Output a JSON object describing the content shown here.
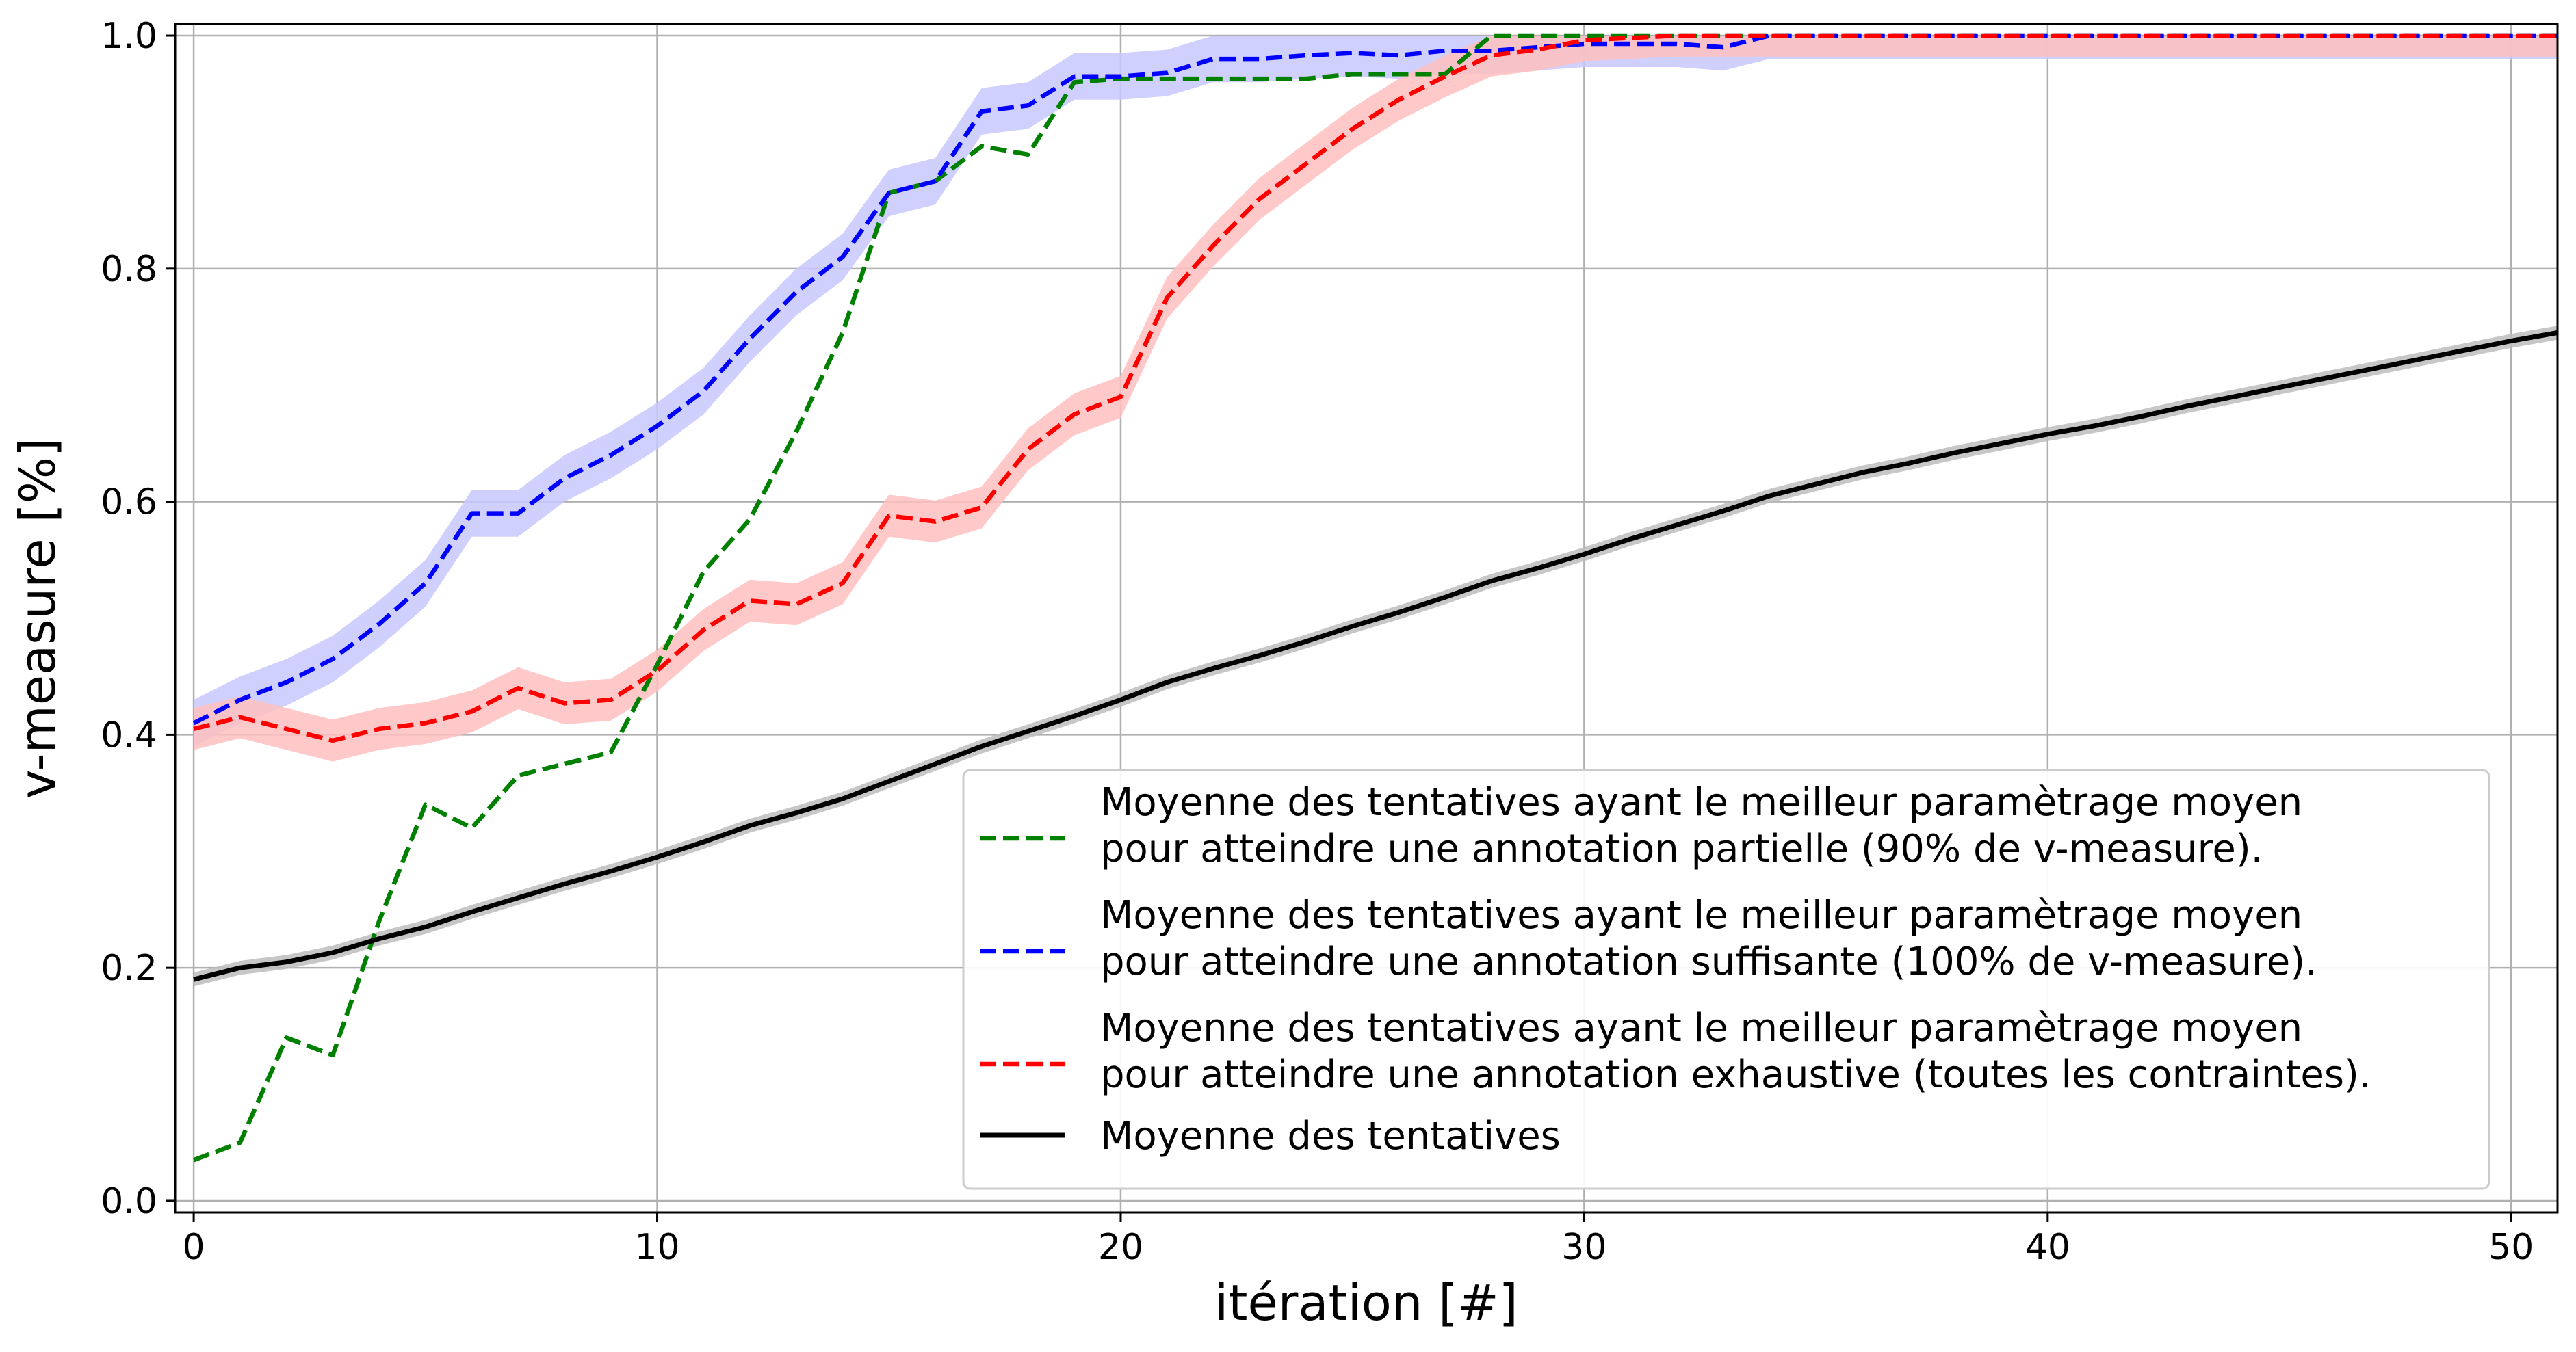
{
  "chart_data": {
    "type": "line",
    "xlabel": "itération [#]",
    "ylabel": "v-measure [%]",
    "xlim": [
      -0.4,
      51
    ],
    "ylim": [
      -0.01,
      1.01
    ],
    "x_ticks": [
      0,
      10,
      20,
      30,
      40,
      50
    ],
    "x_tick_labels": [
      "0",
      "10",
      "20",
      "30",
      "40",
      "50"
    ],
    "y_ticks": [
      0.0,
      0.2,
      0.4,
      0.6,
      0.8,
      1.0
    ],
    "y_tick_labels": [
      "0.0",
      "0.2",
      "0.4",
      "0.6",
      "0.8",
      "1.0"
    ],
    "grid": true,
    "legend_position": "bottom-right",
    "series": [
      {
        "name": "Moyenne des tentatives ayant le meilleur paramètrage moyen pour atteindre une annotation partielle (90% de v-measure).",
        "legend_lines": [
          "Moyenne des tentatives ayant le meilleur paramètrage moyen",
          "pour atteindre une annotation partielle (90% de v-measure)."
        ],
        "color": "#008000",
        "style": "dashed",
        "band": 0,
        "values": [
          0.035,
          0.05,
          0.14,
          0.125,
          0.24,
          0.34,
          0.32,
          0.365,
          0.375,
          0.385,
          0.46,
          0.54,
          0.585,
          0.66,
          0.745,
          0.865,
          0.875,
          0.905,
          0.898,
          0.96,
          0.963,
          0.963,
          0.963,
          0.963,
          0.963,
          0.967,
          0.967,
          0.967,
          1.0,
          1.0,
          1.0,
          1.0,
          1.0,
          1.0,
          1.0,
          1.0,
          1.0,
          1.0,
          1.0,
          1.0,
          1.0,
          1.0,
          1.0,
          1.0,
          1.0,
          1.0,
          1.0,
          1.0,
          1.0,
          1.0,
          1.0,
          1.0
        ]
      },
      {
        "name": "Moyenne des tentatives ayant le meilleur paramètrage moyen pour atteindre une annotation suffisante (100% de v-measure).",
        "legend_lines": [
          "Moyenne des tentatives ayant le meilleur paramètrage moyen",
          "pour atteindre une annotation suffisante (100% de v-measure)."
        ],
        "color": "#0000ff",
        "style": "dashed",
        "band": 0.02,
        "band_color": "#c8c8ff",
        "values": [
          0.41,
          0.43,
          0.445,
          0.465,
          0.495,
          0.53,
          0.59,
          0.59,
          0.62,
          0.64,
          0.665,
          0.695,
          0.74,
          0.78,
          0.81,
          0.865,
          0.875,
          0.935,
          0.94,
          0.965,
          0.965,
          0.968,
          0.98,
          0.98,
          0.983,
          0.985,
          0.983,
          0.987,
          0.987,
          0.99,
          0.993,
          0.993,
          0.993,
          0.99,
          1.0,
          1.0,
          1.0,
          1.0,
          1.0,
          1.0,
          1.0,
          1.0,
          1.0,
          1.0,
          1.0,
          1.0,
          1.0,
          1.0,
          1.0,
          1.0,
          1.0,
          1.0
        ]
      },
      {
        "name": "Moyenne des tentatives ayant le meilleur paramètrage moyen pour atteindre une annotation exhaustive (toutes les contraintes).",
        "legend_lines": [
          "Moyenne des tentatives ayant le meilleur paramètrage moyen",
          "pour atteindre une annotation exhaustive (toutes les contraintes)."
        ],
        "color": "#ff0000",
        "style": "dashed",
        "band": 0.018,
        "band_color": "#ffc0c0",
        "values": [
          0.405,
          0.415,
          0.405,
          0.395,
          0.405,
          0.41,
          0.42,
          0.44,
          0.427,
          0.43,
          0.455,
          0.49,
          0.515,
          0.512,
          0.53,
          0.588,
          0.583,
          0.595,
          0.645,
          0.675,
          0.69,
          0.775,
          0.82,
          0.86,
          0.89,
          0.92,
          0.945,
          0.965,
          0.983,
          0.988,
          0.996,
          0.998,
          1.0,
          1.0,
          1.0,
          1.0,
          1.0,
          1.0,
          1.0,
          1.0,
          1.0,
          1.0,
          1.0,
          1.0,
          1.0,
          1.0,
          1.0,
          1.0,
          1.0,
          1.0,
          1.0,
          1.0
        ]
      },
      {
        "name": "Moyenne des tentatives",
        "legend_lines": [
          "Moyenne des tentatives"
        ],
        "color": "#000000",
        "style": "solid",
        "band": 0.006,
        "band_color": "#bdbdbd",
        "values": [
          0.19,
          0.2,
          0.205,
          0.213,
          0.225,
          0.235,
          0.248,
          0.26,
          0.272,
          0.283,
          0.295,
          0.308,
          0.322,
          0.333,
          0.345,
          0.36,
          0.375,
          0.39,
          0.403,
          0.416,
          0.43,
          0.445,
          0.457,
          0.468,
          0.48,
          0.493,
          0.505,
          0.518,
          0.532,
          0.543,
          0.555,
          0.568,
          0.58,
          0.592,
          0.605,
          0.615,
          0.625,
          0.633,
          0.642,
          0.65,
          0.658,
          0.665,
          0.673,
          0.682,
          0.69,
          0.698,
          0.706,
          0.714,
          0.722,
          0.73,
          0.738,
          0.745
        ]
      }
    ]
  }
}
